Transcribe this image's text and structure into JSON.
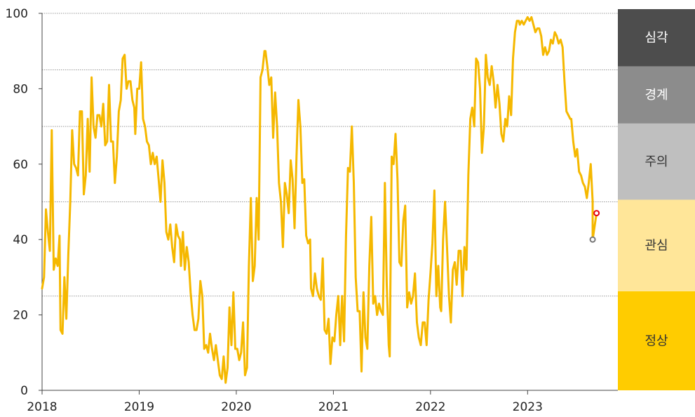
{
  "chart_data": {
    "type": "line",
    "title": "",
    "xlabel": "",
    "ylabel": "",
    "xlim": [
      2018.0,
      2023.85
    ],
    "ylim": [
      0,
      100
    ],
    "x_ticks": [
      "2018",
      "2019",
      "2020",
      "2021",
      "2022",
      "2023"
    ],
    "y_ticks": [
      "0",
      "20",
      "40",
      "60",
      "80",
      "100"
    ],
    "grid": "horizontal dotted at 25, 50, 70, 85",
    "line_color": "#f5b800",
    "series": [
      {
        "points": [
          [
            2018.0,
            27
          ],
          [
            2018.02,
            30
          ],
          [
            2018.04,
            48
          ],
          [
            2018.06,
            42
          ],
          [
            2018.08,
            37
          ],
          [
            2018.1,
            69
          ],
          [
            2018.12,
            32
          ],
          [
            2018.14,
            35
          ],
          [
            2018.16,
            33
          ],
          [
            2018.18,
            41
          ],
          [
            2018.19,
            16
          ],
          [
            2018.21,
            15
          ],
          [
            2018.23,
            30
          ],
          [
            2018.25,
            19
          ],
          [
            2018.27,
            36
          ],
          [
            2018.29,
            50
          ],
          [
            2018.31,
            69
          ],
          [
            2018.33,
            60
          ],
          [
            2018.35,
            59
          ],
          [
            2018.37,
            57
          ],
          [
            2018.39,
            74
          ],
          [
            2018.41,
            74
          ],
          [
            2018.43,
            52
          ],
          [
            2018.45,
            57
          ],
          [
            2018.47,
            72
          ],
          [
            2018.49,
            58
          ],
          [
            2018.51,
            83
          ],
          [
            2018.53,
            70
          ],
          [
            2018.55,
            67
          ],
          [
            2018.57,
            73
          ],
          [
            2018.59,
            73
          ],
          [
            2018.61,
            70
          ],
          [
            2018.63,
            76
          ],
          [
            2018.65,
            65
          ],
          [
            2018.67,
            66
          ],
          [
            2018.69,
            81
          ],
          [
            2018.71,
            66
          ],
          [
            2018.73,
            66
          ],
          [
            2018.75,
            55
          ],
          [
            2018.77,
            62
          ],
          [
            2018.79,
            74
          ],
          [
            2018.81,
            77
          ],
          [
            2018.83,
            88
          ],
          [
            2018.85,
            89
          ],
          [
            2018.87,
            80
          ],
          [
            2018.89,
            82
          ],
          [
            2018.91,
            82
          ],
          [
            2018.93,
            77
          ],
          [
            2018.95,
            75
          ],
          [
            2018.96,
            68
          ],
          [
            2018.98,
            80
          ],
          [
            2019.0,
            80
          ],
          [
            2019.02,
            87
          ],
          [
            2019.04,
            72
          ],
          [
            2019.06,
            70
          ],
          [
            2019.08,
            66
          ],
          [
            2019.1,
            65
          ],
          [
            2019.12,
            60
          ],
          [
            2019.14,
            63
          ],
          [
            2019.16,
            60
          ],
          [
            2019.18,
            62
          ],
          [
            2019.2,
            56
          ],
          [
            2019.22,
            50
          ],
          [
            2019.24,
            61
          ],
          [
            2019.26,
            55
          ],
          [
            2019.28,
            42
          ],
          [
            2019.3,
            40
          ],
          [
            2019.32,
            44
          ],
          [
            2019.34,
            38
          ],
          [
            2019.36,
            34
          ],
          [
            2019.38,
            44
          ],
          [
            2019.4,
            41
          ],
          [
            2019.42,
            40
          ],
          [
            2019.43,
            33
          ],
          [
            2019.45,
            42
          ],
          [
            2019.47,
            32
          ],
          [
            2019.49,
            38
          ],
          [
            2019.51,
            34
          ],
          [
            2019.53,
            26
          ],
          [
            2019.55,
            20
          ],
          [
            2019.57,
            16
          ],
          [
            2019.59,
            16
          ],
          [
            2019.61,
            19
          ],
          [
            2019.63,
            29
          ],
          [
            2019.65,
            25
          ],
          [
            2019.67,
            11
          ],
          [
            2019.69,
            12
          ],
          [
            2019.71,
            10
          ],
          [
            2019.73,
            15
          ],
          [
            2019.75,
            11
          ],
          [
            2019.77,
            8
          ],
          [
            2019.79,
            12
          ],
          [
            2019.81,
            8
          ],
          [
            2019.83,
            4
          ],
          [
            2019.85,
            3
          ],
          [
            2019.87,
            9
          ],
          [
            2019.89,
            2
          ],
          [
            2019.91,
            6
          ],
          [
            2019.93,
            22
          ],
          [
            2019.95,
            12
          ],
          [
            2019.97,
            26
          ],
          [
            2019.99,
            11
          ],
          [
            2020.01,
            11
          ],
          [
            2020.03,
            8
          ],
          [
            2020.05,
            10
          ],
          [
            2020.07,
            18
          ],
          [
            2020.09,
            4
          ],
          [
            2020.11,
            6
          ],
          [
            2020.13,
            33
          ],
          [
            2020.15,
            51
          ],
          [
            2020.17,
            29
          ],
          [
            2020.19,
            33
          ],
          [
            2020.21,
            51
          ],
          [
            2020.23,
            40
          ],
          [
            2020.25,
            83
          ],
          [
            2020.27,
            85
          ],
          [
            2020.29,
            90
          ],
          [
            2020.3,
            90
          ],
          [
            2020.32,
            86
          ],
          [
            2020.34,
            81
          ],
          [
            2020.36,
            83
          ],
          [
            2020.38,
            67
          ],
          [
            2020.4,
            79
          ],
          [
            2020.42,
            70
          ],
          [
            2020.44,
            55
          ],
          [
            2020.46,
            50
          ],
          [
            2020.48,
            38
          ],
          [
            2020.5,
            55
          ],
          [
            2020.52,
            52
          ],
          [
            2020.54,
            47
          ],
          [
            2020.56,
            61
          ],
          [
            2020.58,
            56
          ],
          [
            2020.6,
            43
          ],
          [
            2020.62,
            62
          ],
          [
            2020.64,
            77
          ],
          [
            2020.66,
            70
          ],
          [
            2020.68,
            55
          ],
          [
            2020.7,
            56
          ],
          [
            2020.72,
            41
          ],
          [
            2020.74,
            39
          ],
          [
            2020.76,
            40
          ],
          [
            2020.77,
            27
          ],
          [
            2020.79,
            25
          ],
          [
            2020.81,
            31
          ],
          [
            2020.83,
            27
          ],
          [
            2020.85,
            25
          ],
          [
            2020.87,
            24
          ],
          [
            2020.89,
            35
          ],
          [
            2020.91,
            16
          ],
          [
            2020.93,
            15
          ],
          [
            2020.95,
            19
          ],
          [
            2020.97,
            7
          ],
          [
            2020.99,
            14
          ],
          [
            2021.01,
            13
          ],
          [
            2021.03,
            20
          ],
          [
            2021.05,
            25
          ],
          [
            2021.07,
            12
          ],
          [
            2021.09,
            25
          ],
          [
            2021.11,
            13
          ],
          [
            2021.13,
            41
          ],
          [
            2021.15,
            59
          ],
          [
            2021.17,
            58
          ],
          [
            2021.19,
            70
          ],
          [
            2021.21,
            55
          ],
          [
            2021.23,
            30
          ],
          [
            2021.25,
            21
          ],
          [
            2021.27,
            21
          ],
          [
            2021.29,
            5
          ],
          [
            2021.31,
            26
          ],
          [
            2021.33,
            14
          ],
          [
            2021.35,
            11
          ],
          [
            2021.37,
            33
          ],
          [
            2021.39,
            46
          ],
          [
            2021.41,
            23
          ],
          [
            2021.43,
            25
          ],
          [
            2021.45,
            20
          ],
          [
            2021.47,
            23
          ],
          [
            2021.49,
            21
          ],
          [
            2021.51,
            20
          ],
          [
            2021.53,
            55
          ],
          [
            2021.55,
            28
          ],
          [
            2021.57,
            12
          ],
          [
            2021.58,
            9
          ],
          [
            2021.6,
            62
          ],
          [
            2021.62,
            60
          ],
          [
            2021.64,
            68
          ],
          [
            2021.66,
            56
          ],
          [
            2021.68,
            34
          ],
          [
            2021.7,
            33
          ],
          [
            2021.72,
            45
          ],
          [
            2021.74,
            49
          ],
          [
            2021.76,
            22
          ],
          [
            2021.78,
            26
          ],
          [
            2021.8,
            23
          ],
          [
            2021.82,
            25
          ],
          [
            2021.84,
            31
          ],
          [
            2021.86,
            18
          ],
          [
            2021.88,
            14
          ],
          [
            2021.9,
            12
          ],
          [
            2021.92,
            18
          ],
          [
            2021.94,
            18
          ],
          [
            2021.96,
            12
          ],
          [
            2021.98,
            24
          ],
          [
            2022.0,
            31
          ],
          [
            2022.02,
            39
          ],
          [
            2022.04,
            53
          ],
          [
            2022.06,
            25
          ],
          [
            2022.08,
            33
          ],
          [
            2022.1,
            22
          ],
          [
            2022.11,
            21
          ],
          [
            2022.13,
            40
          ],
          [
            2022.15,
            50
          ],
          [
            2022.17,
            38
          ],
          [
            2022.19,
            25
          ],
          [
            2022.21,
            18
          ],
          [
            2022.23,
            32
          ],
          [
            2022.25,
            34
          ],
          [
            2022.27,
            28
          ],
          [
            2022.29,
            37
          ],
          [
            2022.31,
            37
          ],
          [
            2022.33,
            25
          ],
          [
            2022.35,
            38
          ],
          [
            2022.37,
            32
          ],
          [
            2022.39,
            57
          ],
          [
            2022.41,
            72
          ],
          [
            2022.43,
            75
          ],
          [
            2022.45,
            70
          ],
          [
            2022.47,
            88
          ],
          [
            2022.49,
            87
          ],
          [
            2022.51,
            80
          ],
          [
            2022.53,
            63
          ],
          [
            2022.55,
            70
          ],
          [
            2022.57,
            89
          ],
          [
            2022.59,
            83
          ],
          [
            2022.61,
            81
          ],
          [
            2022.63,
            86
          ],
          [
            2022.65,
            82
          ],
          [
            2022.67,
            75
          ],
          [
            2022.69,
            81
          ],
          [
            2022.71,
            76
          ],
          [
            2022.73,
            68
          ],
          [
            2022.75,
            66
          ],
          [
            2022.77,
            72
          ],
          [
            2022.79,
            70
          ],
          [
            2022.81,
            78
          ],
          [
            2022.83,
            73
          ],
          [
            2022.85,
            88
          ],
          [
            2022.87,
            95
          ],
          [
            2022.89,
            98
          ],
          [
            2022.91,
            98
          ],
          [
            2022.92,
            97
          ],
          [
            2022.94,
            98
          ],
          [
            2022.96,
            97
          ],
          [
            2022.98,
            98
          ],
          [
            2023.0,
            99
          ],
          [
            2023.02,
            98
          ],
          [
            2023.04,
            99
          ],
          [
            2023.06,
            97
          ],
          [
            2023.08,
            95
          ],
          [
            2023.1,
            96
          ],
          [
            2023.12,
            96
          ],
          [
            2023.14,
            94
          ],
          [
            2023.16,
            89
          ],
          [
            2023.18,
            91
          ],
          [
            2023.2,
            89
          ],
          [
            2023.22,
            90
          ],
          [
            2023.24,
            93
          ],
          [
            2023.26,
            92
          ],
          [
            2023.28,
            95
          ],
          [
            2023.3,
            94
          ],
          [
            2023.32,
            92
          ],
          [
            2023.34,
            93
          ],
          [
            2023.36,
            91
          ],
          [
            2023.38,
            82
          ],
          [
            2023.4,
            74
          ],
          [
            2023.42,
            73
          ],
          [
            2023.44,
            72
          ],
          [
            2023.45,
            72
          ],
          [
            2023.47,
            66
          ],
          [
            2023.49,
            62
          ],
          [
            2023.51,
            64
          ],
          [
            2023.53,
            58
          ],
          [
            2023.55,
            57
          ],
          [
            2023.57,
            55
          ],
          [
            2023.59,
            54
          ],
          [
            2023.61,
            51
          ],
          [
            2023.63,
            55
          ],
          [
            2023.65,
            60
          ],
          [
            2023.67,
            50
          ]
        ]
      }
    ],
    "markers": [
      {
        "x": 2023.67,
        "y": 40,
        "stroke": "#777777"
      },
      {
        "x": 2023.71,
        "y": 47,
        "stroke": "#e60012"
      }
    ],
    "bands": [
      {
        "label": "정상",
        "from": 0,
        "to": 26,
        "color": "#ffcc00",
        "text_color": "#333333"
      },
      {
        "label": "관심",
        "from": 26,
        "to": 50,
        "color": "#ffe699",
        "text_color": "#333333"
      },
      {
        "label": "주의",
        "from": 50,
        "to": 70,
        "color": "#bfbfbf",
        "text_color": "#333333"
      },
      {
        "label": "경계",
        "from": 70,
        "to": 85,
        "color": "#8c8c8c",
        "text_color": "#ffffff"
      },
      {
        "label": "심각",
        "from": 85,
        "to": 100,
        "color": "#4d4d4d",
        "text_color": "#ffffff"
      }
    ]
  }
}
